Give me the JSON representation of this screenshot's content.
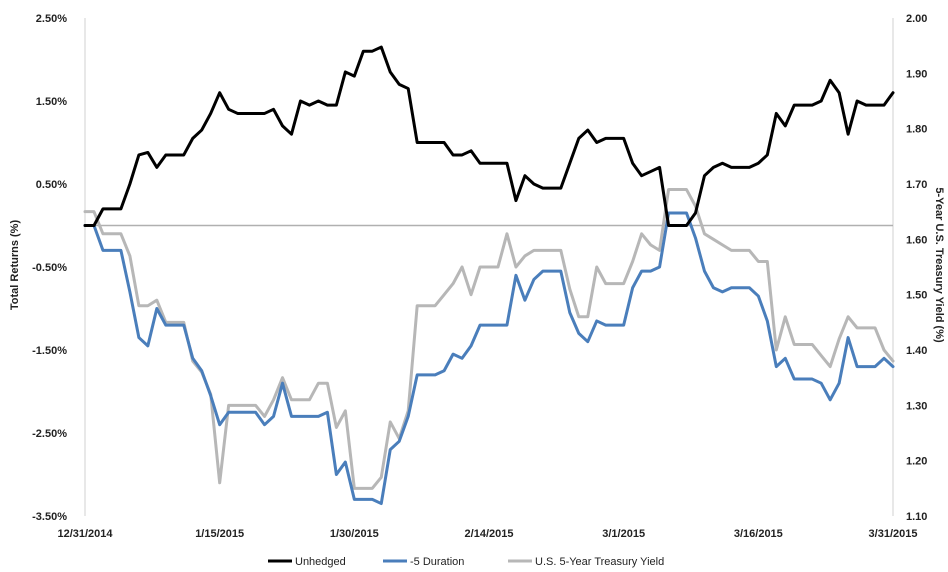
{
  "chart_data": {
    "type": "line",
    "title": "",
    "y_left_label": "Total Returns (%)",
    "y_right_label": "5-Year U.S. Treasury Yield (%)",
    "y_left_ticks": [
      "2.50%",
      "1.50%",
      "0.50%",
      "-0.50%",
      "-1.50%",
      "-2.50%",
      "-3.50%"
    ],
    "y_left_tick_values": [
      2.5,
      1.5,
      0.5,
      -0.5,
      -1.5,
      -2.5,
      -3.5
    ],
    "y_left_range": [
      -3.5,
      2.5
    ],
    "y_right_ticks": [
      "2.00",
      "1.90",
      "1.80",
      "1.70",
      "1.60",
      "1.50",
      "1.40",
      "1.30",
      "1.20",
      "1.10"
    ],
    "y_right_tick_values": [
      2.0,
      1.9,
      1.8,
      1.7,
      1.6,
      1.5,
      1.4,
      1.3,
      1.2,
      1.1
    ],
    "y_right_range": [
      1.1,
      2.0
    ],
    "x_ticks": [
      "12/31/2014",
      "1/15/2015",
      "1/30/2015",
      "2/14/2015",
      "3/1/2015",
      "3/16/2015",
      "3/31/2015"
    ],
    "x_tick_values": [
      0,
      15,
      30,
      45,
      60,
      75,
      90
    ],
    "x_range": [
      0,
      90
    ],
    "x_unit": "days",
    "legend_position": "bottom",
    "series": [
      {
        "name": "Unhedged",
        "axis": "left",
        "color": "#000000",
        "x": [
          0,
          1,
          2,
          3,
          4,
          5,
          6,
          7,
          8,
          9,
          10,
          11,
          12,
          13,
          14,
          15,
          16,
          17,
          18,
          19,
          20,
          21,
          22,
          23,
          24,
          25,
          26,
          27,
          28,
          29,
          30,
          31,
          32,
          33,
          34,
          35,
          36,
          37,
          38,
          39,
          40,
          41,
          42,
          43,
          44,
          45,
          46,
          47,
          48,
          49,
          50,
          51,
          52,
          53,
          54,
          55,
          56,
          57,
          58,
          59,
          60,
          61,
          62,
          63,
          64,
          65,
          66,
          67,
          68,
          69,
          70,
          71,
          72,
          73,
          74,
          75,
          76,
          77,
          78,
          79,
          80,
          81,
          82,
          83,
          84,
          85,
          86,
          87,
          88,
          89,
          90
        ],
        "values": [
          0.0,
          0.0,
          0.2,
          0.2,
          0.2,
          0.5,
          0.85,
          0.88,
          0.7,
          0.85,
          0.85,
          0.85,
          1.05,
          1.15,
          1.35,
          1.6,
          1.4,
          1.35,
          1.35,
          1.35,
          1.35,
          1.4,
          1.2,
          1.1,
          1.5,
          1.45,
          1.5,
          1.45,
          1.45,
          1.85,
          1.8,
          2.1,
          2.1,
          2.15,
          1.85,
          1.7,
          1.65,
          1.0,
          1.0,
          1.0,
          1.0,
          0.85,
          0.85,
          0.9,
          0.75,
          0.75,
          0.75,
          0.75,
          0.3,
          0.6,
          0.5,
          0.45,
          0.45,
          0.45,
          0.75,
          1.05,
          1.15,
          1.0,
          1.05,
          1.05,
          1.05,
          0.75,
          0.6,
          0.65,
          0.7,
          0.0,
          0.0,
          0.0,
          0.15,
          0.6,
          0.7,
          0.75,
          0.7,
          0.7,
          0.7,
          0.75,
          0.85,
          1.35,
          1.2,
          1.45,
          1.45,
          1.45,
          1.5,
          1.75,
          1.6,
          1.1,
          1.5,
          1.45,
          1.45,
          1.45,
          1.6
        ]
      },
      {
        "name": "-5 Duration",
        "axis": "left",
        "color": "#4a7ebb",
        "x": [
          0,
          1,
          2,
          3,
          4,
          5,
          6,
          7,
          8,
          9,
          10,
          11,
          12,
          13,
          14,
          15,
          16,
          17,
          18,
          19,
          20,
          21,
          22,
          23,
          24,
          25,
          26,
          27,
          28,
          29,
          30,
          31,
          32,
          33,
          34,
          35,
          36,
          37,
          38,
          39,
          40,
          41,
          42,
          43,
          44,
          45,
          46,
          47,
          48,
          49,
          50,
          51,
          52,
          53,
          54,
          55,
          56,
          57,
          58,
          59,
          60,
          61,
          62,
          63,
          64,
          65,
          66,
          67,
          68,
          69,
          70,
          71,
          72,
          73,
          74,
          75,
          76,
          77,
          78,
          79,
          80,
          81,
          82,
          83,
          84,
          85,
          86,
          87,
          88,
          89,
          90
        ],
        "values": [
          0.0,
          0.0,
          -0.3,
          -0.3,
          -0.3,
          -0.8,
          -1.35,
          -1.45,
          -1.0,
          -1.2,
          -1.2,
          -1.2,
          -1.6,
          -1.75,
          -2.05,
          -2.4,
          -2.25,
          -2.25,
          -2.25,
          -2.25,
          -2.4,
          -2.3,
          -1.9,
          -2.3,
          -2.3,
          -2.3,
          -2.3,
          -2.25,
          -3.0,
          -2.85,
          -3.3,
          -3.3,
          -3.3,
          -3.35,
          -2.7,
          -2.6,
          -2.3,
          -1.8,
          -1.8,
          -1.8,
          -1.75,
          -1.55,
          -1.6,
          -1.45,
          -1.2,
          -1.2,
          -1.2,
          -1.2,
          -0.6,
          -0.9,
          -0.65,
          -0.55,
          -0.55,
          -0.55,
          -1.05,
          -1.3,
          -1.4,
          -1.15,
          -1.2,
          -1.2,
          -1.2,
          -0.75,
          -0.55,
          -0.55,
          -0.5,
          0.15,
          0.15,
          0.15,
          -0.15,
          -0.55,
          -0.75,
          -0.8,
          -0.75,
          -0.75,
          -0.75,
          -0.85,
          -1.15,
          -1.7,
          -1.6,
          -1.85,
          -1.85,
          -1.85,
          -1.9,
          -2.1,
          -1.9,
          -1.35,
          -1.7,
          -1.7,
          -1.7,
          -1.6,
          -1.7
        ]
      },
      {
        "name": "U.S. 5-Year Treasury Yield",
        "axis": "right",
        "color": "#b7b7b7",
        "x": [
          0,
          1,
          2,
          3,
          4,
          5,
          6,
          7,
          8,
          9,
          10,
          11,
          12,
          13,
          14,
          15,
          16,
          17,
          18,
          19,
          20,
          21,
          22,
          23,
          24,
          25,
          26,
          27,
          28,
          29,
          30,
          31,
          32,
          33,
          34,
          35,
          36,
          37,
          38,
          39,
          40,
          41,
          42,
          43,
          44,
          45,
          46,
          47,
          48,
          49,
          50,
          51,
          52,
          53,
          54,
          55,
          56,
          57,
          58,
          59,
          60,
          61,
          62,
          63,
          64,
          65,
          66,
          67,
          68,
          69,
          70,
          71,
          72,
          73,
          74,
          75,
          76,
          77,
          78,
          79,
          80,
          81,
          82,
          83,
          84,
          85,
          86,
          87,
          88,
          89,
          90
        ],
        "values": [
          1.65,
          1.65,
          1.61,
          1.61,
          1.61,
          1.57,
          1.48,
          1.48,
          1.49,
          1.45,
          1.45,
          1.45,
          1.38,
          1.36,
          1.32,
          1.16,
          1.3,
          1.3,
          1.3,
          1.3,
          1.28,
          1.31,
          1.35,
          1.31,
          1.31,
          1.31,
          1.34,
          1.34,
          1.26,
          1.29,
          1.15,
          1.15,
          1.15,
          1.17,
          1.27,
          1.24,
          1.29,
          1.48,
          1.48,
          1.48,
          1.5,
          1.52,
          1.55,
          1.5,
          1.55,
          1.55,
          1.55,
          1.61,
          1.55,
          1.57,
          1.58,
          1.58,
          1.58,
          1.58,
          1.51,
          1.46,
          1.46,
          1.55,
          1.52,
          1.52,
          1.52,
          1.56,
          1.61,
          1.59,
          1.58,
          1.69,
          1.69,
          1.69,
          1.66,
          1.61,
          1.6,
          1.59,
          1.58,
          1.58,
          1.58,
          1.56,
          1.56,
          1.4,
          1.46,
          1.41,
          1.41,
          1.41,
          1.39,
          1.37,
          1.42,
          1.46,
          1.44,
          1.44,
          1.44,
          1.4,
          1.38
        ]
      }
    ],
    "reference_line": {
      "axis": "left",
      "value": 0.0,
      "color": "#b0b0b0"
    }
  }
}
